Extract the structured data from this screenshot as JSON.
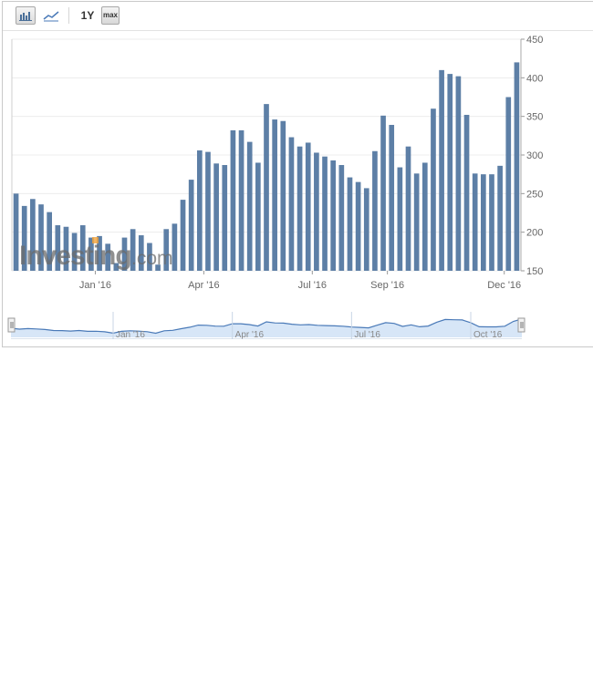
{
  "toolbar": {
    "range_1y_label": "1Y",
    "range_max_label": "max",
    "bar_chart_icon": "bar-chart-icon",
    "line_chart_icon": "line-chart-icon"
  },
  "watermark": "Investing.com",
  "colors": {
    "bar": "#5d7fa6",
    "grid": "#ececec",
    "navigator_fill": "#d7e6f7",
    "navigator_line": "#4a7ab8",
    "axis_text": "#666666"
  },
  "chart_data": {
    "type": "bar",
    "ylim": [
      150,
      450
    ],
    "yticks": [
      150,
      200,
      250,
      300,
      350,
      400,
      450
    ],
    "grid": true,
    "values": [
      250,
      234,
      243,
      236,
      226,
      209,
      207,
      199,
      209,
      193,
      195,
      185,
      160,
      193,
      204,
      196,
      186,
      158,
      204,
      211,
      242,
      268,
      306,
      304,
      289,
      287,
      332,
      332,
      317,
      290,
      366,
      346,
      344,
      323,
      311,
      316,
      303,
      298,
      293,
      287,
      271,
      265,
      257,
      305,
      351,
      339,
      284,
      311,
      276,
      290,
      360,
      410,
      405,
      402,
      352,
      276,
      275,
      275,
      286,
      375,
      420
    ],
    "xtick_labels": [
      {
        "label": "Jan '16",
        "index": 9.5
      },
      {
        "label": "Apr '16",
        "index": 22.5
      },
      {
        "label": "Jul '16",
        "index": 35.5
      },
      {
        "label": "Sep '16",
        "index": 44.5
      },
      {
        "label": "Dec '16",
        "index": 58.5
      }
    ],
    "navigator_labels": [
      {
        "label": "Jan '16",
        "index": 12
      },
      {
        "label": "Apr '16",
        "index": 26
      },
      {
        "label": "Jul '16",
        "index": 40
      },
      {
        "label": "Oct '16",
        "index": 54
      }
    ]
  }
}
